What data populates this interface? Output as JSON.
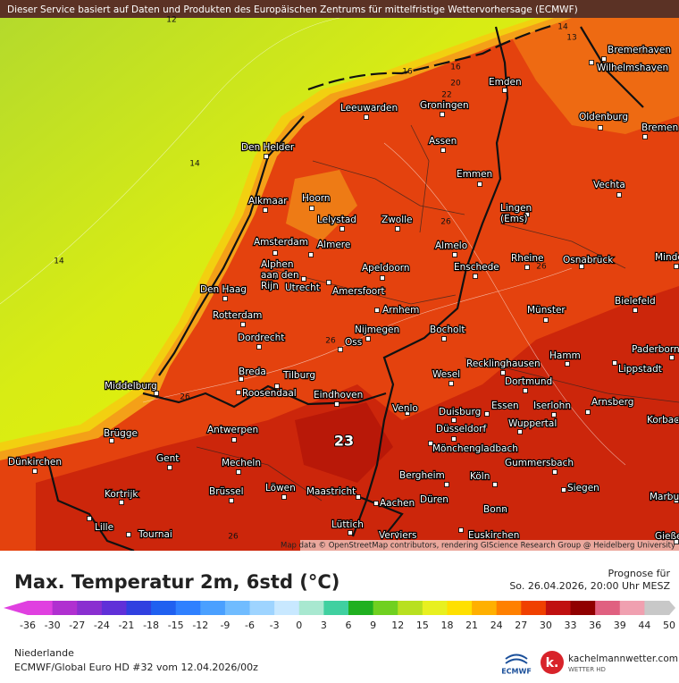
{
  "header": {
    "notice": "Dieser Service basiert auf Daten und Produkten des Europäischen Zentrums für mittelfristige Wettervorhersage (ECMWF)"
  },
  "map": {
    "cities": [
      "Emden",
      "Bremerhaven",
      "Wilhelmshaven",
      "Leeuwarden",
      "Groningen",
      "Oldenburg",
      "Bremen",
      "Den Helder",
      "Assen",
      "Emmen",
      "Vechta",
      "Alkmaar",
      "Hoorn",
      [
        "Lingen",
        "(Ems)"
      ],
      "Lelystad",
      "Zwolle",
      "Amsterdam",
      "Almere",
      "Almelo",
      "Minden",
      "Rheine",
      "Osnabrück",
      [
        "Alphen",
        "aan den",
        "Rijn"
      ],
      "Apeldoorn",
      "Enschede",
      "Den Haag",
      "Utrecht",
      "Amersfoort",
      "Bielefeld",
      "Rotterdam",
      "Arnhem",
      "Münster",
      "Nijmegen",
      "Bocholt",
      "Dordrecht",
      "Oss",
      "Hamm",
      "Paderborn",
      "Recklinghausen",
      "Lippstadt",
      "Breda",
      "Tilburg",
      "Wesel",
      "Dortmund",
      "Middelburg",
      "Roosendaal",
      "Eindhoven",
      "Arnsberg",
      "Essen",
      "Iserlohn",
      "Korbach",
      "Venlo",
      "Duisburg",
      "Wuppertal",
      "Brügge",
      "Antwerpen",
      "Düsseldorf",
      "Mönchengladbach",
      "Dünkirchen",
      "Gent",
      "Mecheln",
      "Gummersbach",
      "Bergheim",
      "Köln",
      "Kortrijk",
      "Brüssel",
      "Löwen",
      "Maastricht",
      "Düren",
      "Siegen",
      "Marburg",
      "Aachen",
      "Bonn",
      "Lille",
      "Tournai",
      "Lüttich",
      "Verviers",
      "Euskirchen",
      "Gießen"
    ],
    "contour_labels": [
      12,
      14,
      14,
      16,
      16,
      20,
      22,
      26,
      26,
      26,
      26,
      26,
      14,
      13
    ],
    "max_label": 23,
    "attribution": "Map data © OpenStreetMap contributors, rendering GIScience Research Group @ Heidelberg University"
  },
  "footer": {
    "title": "Max. Temperatur 2m, 6std (°C)",
    "forecast_label": "Prognose für",
    "forecast_time": "So. 26.04.2026, 20:00 Uhr MESZ",
    "region": "Niederlande",
    "model": "ECMWF/Global Euro HD #32 vom  12.04.2026/00z",
    "ecmwf_logo": "ECMWF",
    "brand": "kachelmannwetter.com",
    "brand_sub": "WETTER HD"
  },
  "colorbar": {
    "ticks": [
      -36,
      -30,
      -27,
      -24,
      -21,
      -18,
      -15,
      -12,
      -9,
      -6,
      -3,
      0,
      3,
      6,
      9,
      12,
      15,
      18,
      21,
      24,
      27,
      30,
      33,
      36,
      39,
      44,
      50
    ],
    "colors": [
      "#e040e0",
      "#b030d0",
      "#8a2fd0",
      "#6030d8",
      "#3040e0",
      "#2060f0",
      "#2f80ff",
      "#4aa0ff",
      "#70bcff",
      "#9ed4ff",
      "#c8e8ff",
      "#a8e8d0",
      "#40d0a0",
      "#20b020",
      "#70d020",
      "#b8e020",
      "#e8f020",
      "#ffe000",
      "#ffb000",
      "#ff8000",
      "#f04000",
      "#c01010",
      "#900000",
      "#e06080",
      "#f0a0b0",
      "#c8c8c8"
    ]
  }
}
